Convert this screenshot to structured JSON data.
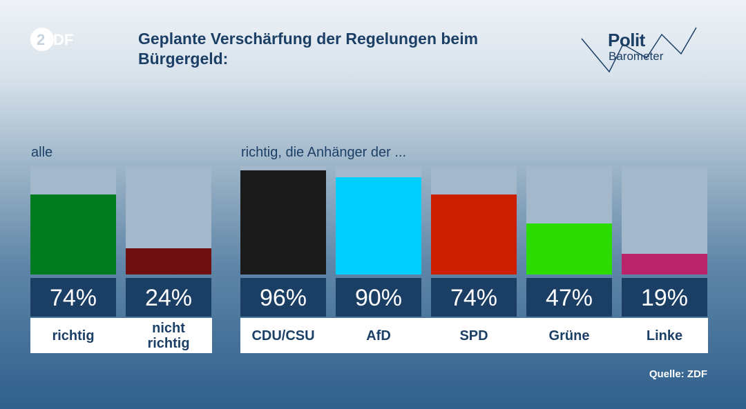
{
  "header": {
    "title": "Geplante Verschärfung der Regelungen beim Bürgergeld:",
    "brand_logo_icon": "zdf-logo-icon",
    "polit_word": "Polit",
    "barometer_word": "Barometer"
  },
  "chart_data": {
    "type": "bar",
    "title": "Geplante Verschärfung der Regelungen beim Bürgergeld:",
    "ylim": [
      0,
      100
    ],
    "grid": false,
    "groups": [
      {
        "label": "alle",
        "categories": [
          "richtig",
          "nicht\nrichtig"
        ],
        "values": [
          74,
          24
        ],
        "value_labels": [
          "74%",
          "24%"
        ],
        "colors": [
          "#007a1e",
          "#6e0f12"
        ]
      },
      {
        "label": "richtig, die Anhänger der ...",
        "categories": [
          "CDU/CSU",
          "AfD",
          "SPD",
          "Grüne",
          "Linke"
        ],
        "values": [
          96,
          90,
          74,
          47,
          19
        ],
        "value_labels": [
          "96%",
          "90%",
          "74%",
          "47%",
          "19%"
        ],
        "colors": [
          "#1b1b1b",
          "#00ceff",
          "#cc1f00",
          "#2cdc00",
          "#b9236a"
        ]
      }
    ]
  },
  "footer": {
    "source": "Quelle: ZDF"
  },
  "colors": {
    "background_top": "#eef2f6",
    "background_bottom": "#2f5f8c",
    "accent": "#1b3e64",
    "track": "#a3b9cb"
  }
}
